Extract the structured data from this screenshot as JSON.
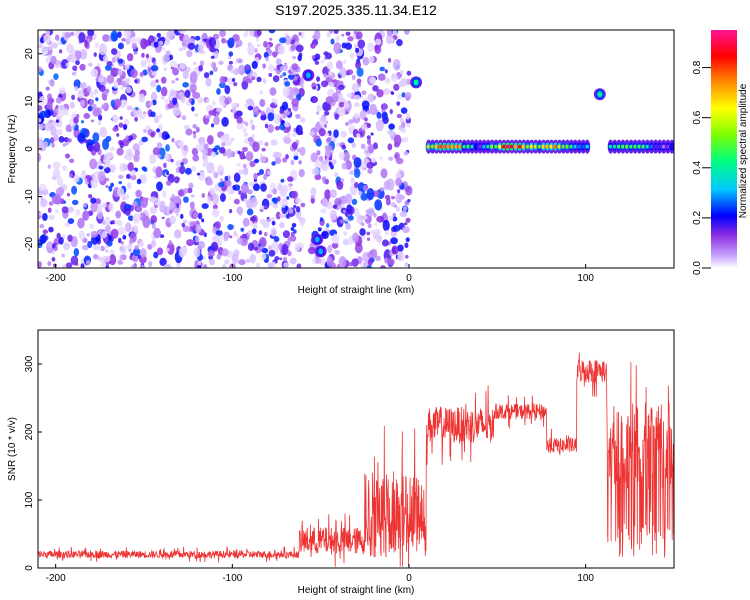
{
  "title": "S197.2025.335.11.34.E12",
  "chart_data": [
    {
      "type": "heatmap",
      "xlabel": "Height of straight line (km)",
      "ylabel": "Frequency (Hz)",
      "xlim": [
        -210,
        150
      ],
      "ylim": [
        -25,
        25
      ],
      "xticks": [
        -200,
        -100,
        0,
        100
      ],
      "yticks": [
        -20,
        -10,
        0,
        10,
        20
      ],
      "colorbar": {
        "label": "Normalized spectral amplitude",
        "range": [
          0,
          0.95
        ],
        "ticks": [
          0.0,
          0.2,
          0.4,
          0.6,
          0.8
        ],
        "tick_labels": [
          "0.0",
          "0.2",
          "0.4",
          "0.6",
          "0.8"
        ],
        "colormap": [
          "#ffffff",
          "#c9a6ff",
          "#8a2be2",
          "#0000ff",
          "#00c8ff",
          "#00ff7f",
          "#7fff00",
          "#ffff00",
          "#ff8c00",
          "#ff0000",
          "#ff1493"
        ]
      },
      "features": [
        {
          "kind": "noise",
          "x_range": [
            -210,
            -60
          ],
          "y_range": [
            -25,
            25
          ],
          "level": 0.15
        },
        {
          "kind": "noise",
          "x_range": [
            -55,
            0
          ],
          "y_range": [
            -25,
            25
          ],
          "level": 0.15
        },
        {
          "kind": "blob",
          "x": -57,
          "y": 15.5,
          "level": 0.3
        },
        {
          "kind": "blob",
          "x": -52,
          "y": -19,
          "level": 0.3
        },
        {
          "kind": "blob",
          "x": -50,
          "y": -21.5,
          "level": 0.3
        },
        {
          "kind": "blob",
          "x": 4,
          "y": 14,
          "level": 0.4
        },
        {
          "kind": "blob",
          "x": 108,
          "y": 11.5,
          "level": 0.4
        },
        {
          "kind": "band",
          "x_range": [
            10,
            102
          ],
          "y": 0.5,
          "level": 0.85
        },
        {
          "kind": "band",
          "x_range": [
            113,
            150
          ],
          "y": 0.5,
          "level": 0.55
        }
      ]
    },
    {
      "type": "line",
      "xlabel": "Height of straight line (km)",
      "ylabel": "SNR (10 * v/v)",
      "xlim": [
        -210,
        150
      ],
      "ylim": [
        0,
        350
      ],
      "xticks": [
        -200,
        -100,
        0,
        100
      ],
      "yticks": [
        0,
        100,
        200,
        300
      ],
      "series": [
        {
          "color": "#ee3333",
          "segments": [
            {
              "x": [
                -210,
                -62
              ],
              "baseline": 20,
              "noise": 12
            },
            {
              "x": [
                -62,
                -25
              ],
              "baseline": 40,
              "noise": 45
            },
            {
              "x": [
                -25,
                10
              ],
              "baseline": 90,
              "noise": 120
            },
            {
              "x": [
                10,
                48
              ],
              "baseline": 210,
              "noise": 60
            },
            {
              "x": [
                48,
                78
              ],
              "baseline": 230,
              "noise": 25
            },
            {
              "x": [
                78,
                95
              ],
              "baseline": 180,
              "noise": 25
            },
            {
              "x": [
                95,
                112
              ],
              "baseline": 290,
              "noise": 40
            },
            {
              "x": [
                112,
                150
              ],
              "baseline": 180,
              "noise": 140
            }
          ]
        }
      ]
    }
  ]
}
